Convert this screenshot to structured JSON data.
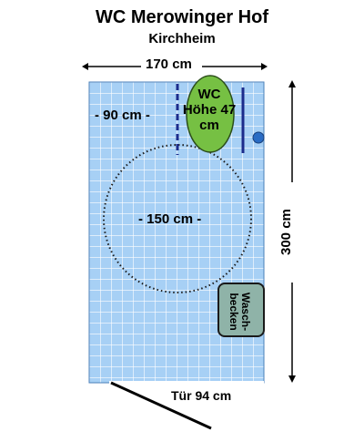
{
  "title": "WC Merowinger Hof",
  "subtitle": "Kirchheim",
  "dimensions": {
    "width": "170 cm",
    "height": "300 cm",
    "left_space": "- 90 cm -",
    "turning_circle": "- 150 cm -"
  },
  "wc": {
    "label": "WC Höhe 47 cm"
  },
  "sink": {
    "label": "Wasch-becken"
  },
  "door": {
    "label": "Tür 94 cm"
  },
  "colors": {
    "floor_tile": "#a7d0f5",
    "tile_grid": "#ffffff",
    "wc": "#76c043",
    "sink": "#8fb3a8",
    "handle_bar": "#1c2c8c",
    "flush_button": "#2a6cc4"
  }
}
